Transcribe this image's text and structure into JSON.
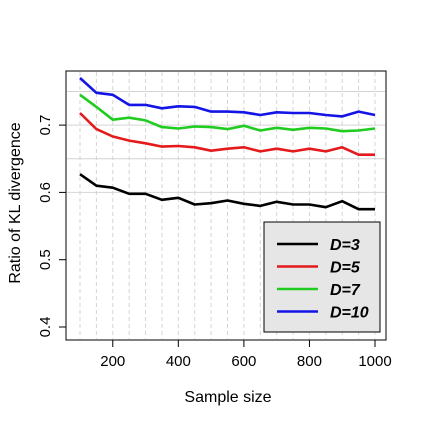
{
  "chart_data": {
    "type": "line",
    "xlabel": "Sample size",
    "ylabel": "Ratio of KL divergence",
    "xlim": [
      100,
      1000
    ],
    "ylim": [
      0.4,
      0.77
    ],
    "xticks": [
      200,
      400,
      600,
      800,
      1000
    ],
    "yticks": [
      0.4,
      0.5,
      0.6,
      0.7
    ],
    "grid": true,
    "x_grid_lines": [
      100,
      150,
      200,
      250,
      300,
      350,
      400,
      450,
      500,
      550,
      600,
      650,
      700,
      750,
      800,
      850,
      900,
      950,
      1000
    ],
    "y_grid_lines": [
      0.6,
      0.65,
      0.7,
      0.75
    ],
    "x": [
      100,
      150,
      200,
      250,
      300,
      350,
      400,
      450,
      500,
      550,
      600,
      650,
      700,
      750,
      800,
      850,
      900,
      950,
      1000
    ],
    "legend_position": "bottom-right",
    "series": [
      {
        "name": "D=3",
        "color": "#000000",
        "values": [
          0.627,
          0.61,
          0.607,
          0.598,
          0.598,
          0.589,
          0.592,
          0.582,
          0.584,
          0.588,
          0.583,
          0.58,
          0.586,
          0.582,
          0.582,
          0.578,
          0.587,
          0.575,
          0.575
        ]
      },
      {
        "name": "D=5",
        "color": "#e41a1c",
        "values": [
          0.718,
          0.694,
          0.683,
          0.677,
          0.673,
          0.668,
          0.669,
          0.667,
          0.662,
          0.665,
          0.667,
          0.661,
          0.665,
          0.661,
          0.665,
          0.661,
          0.667,
          0.656,
          0.656
        ]
      },
      {
        "name": "D=7",
        "color": "#1fcc1f",
        "values": [
          0.745,
          0.727,
          0.708,
          0.711,
          0.707,
          0.697,
          0.695,
          0.698,
          0.697,
          0.694,
          0.699,
          0.692,
          0.696,
          0.693,
          0.696,
          0.695,
          0.691,
          0.692,
          0.695
        ]
      },
      {
        "name": "D=10",
        "color": "#1414e6",
        "values": [
          0.77,
          0.748,
          0.745,
          0.73,
          0.73,
          0.725,
          0.728,
          0.727,
          0.72,
          0.72,
          0.719,
          0.715,
          0.719,
          0.718,
          0.718,
          0.715,
          0.713,
          0.72,
          0.715
        ]
      }
    ]
  }
}
